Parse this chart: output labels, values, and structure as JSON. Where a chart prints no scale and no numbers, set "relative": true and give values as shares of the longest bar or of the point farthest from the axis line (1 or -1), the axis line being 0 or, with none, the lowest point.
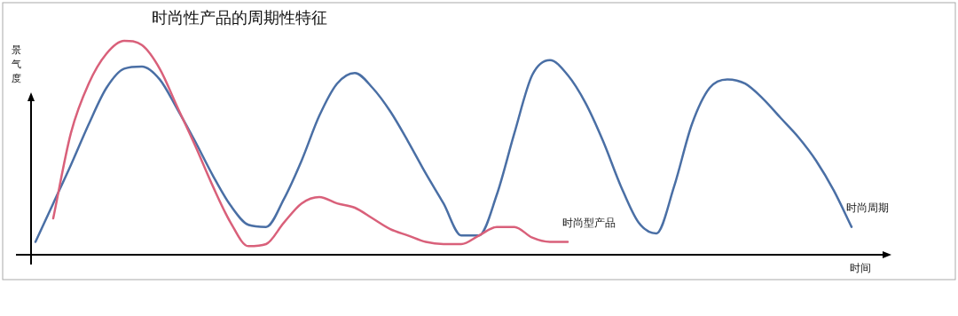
{
  "chart_data": {
    "type": "line",
    "title": "时尚性产品的周期性特征",
    "xlabel": "时间",
    "ylabel": "景气度",
    "relative": true,
    "legend": false,
    "marker": "none",
    "line_style": "solid",
    "categories": [
      null,
      null,
      null,
      null,
      null,
      null,
      null,
      null,
      null,
      null,
      null,
      null,
      null,
      null,
      null,
      null,
      null,
      null,
      null,
      null,
      null,
      null,
      null,
      null,
      null,
      null,
      null,
      null,
      null,
      null,
      null,
      null,
      null,
      null,
      null,
      null,
      null,
      null,
      null,
      null,
      null,
      null,
      null,
      null,
      null,
      null,
      null
    ],
    "series": [
      {
        "name": "时尚周期",
        "color": "#4a6fa5",
        "values": [
          0.06,
          0.24,
          0.42,
          0.61,
          0.78,
          0.87,
          0.88,
          0.82,
          0.68,
          0.53,
          0.37,
          0.23,
          0.14,
          0.13,
          0.26,
          0.44,
          0.65,
          0.8,
          0.85,
          0.78,
          0.67,
          0.53,
          0.38,
          0.24,
          0.09,
          0.09,
          0.28,
          0.57,
          0.84,
          0.91,
          0.84,
          0.71,
          0.53,
          0.32,
          0.15,
          0.1,
          0.32,
          0.61,
          0.78,
          0.82,
          0.8,
          0.73,
          0.64,
          0.55,
          0.44,
          0.3,
          0.13
        ]
      },
      {
        "name": "时尚型产品",
        "color": "#d9607a",
        "values": [
          null,
          0.17,
          0.57,
          0.8,
          0.94,
          1,
          0.98,
          0.87,
          0.69,
          0.51,
          0.32,
          0.15,
          0.04,
          0.05,
          0.15,
          0.24,
          0.27,
          0.24,
          0.22,
          0.17,
          0.12,
          0.09,
          0.06,
          0.05,
          0.05,
          0.09,
          0.13,
          0.13,
          0.08,
          0.06,
          0.06,
          null,
          null,
          null,
          null,
          null,
          null,
          null,
          null,
          null,
          null,
          null,
          null,
          null,
          null,
          null,
          null
        ]
      }
    ]
  }
}
